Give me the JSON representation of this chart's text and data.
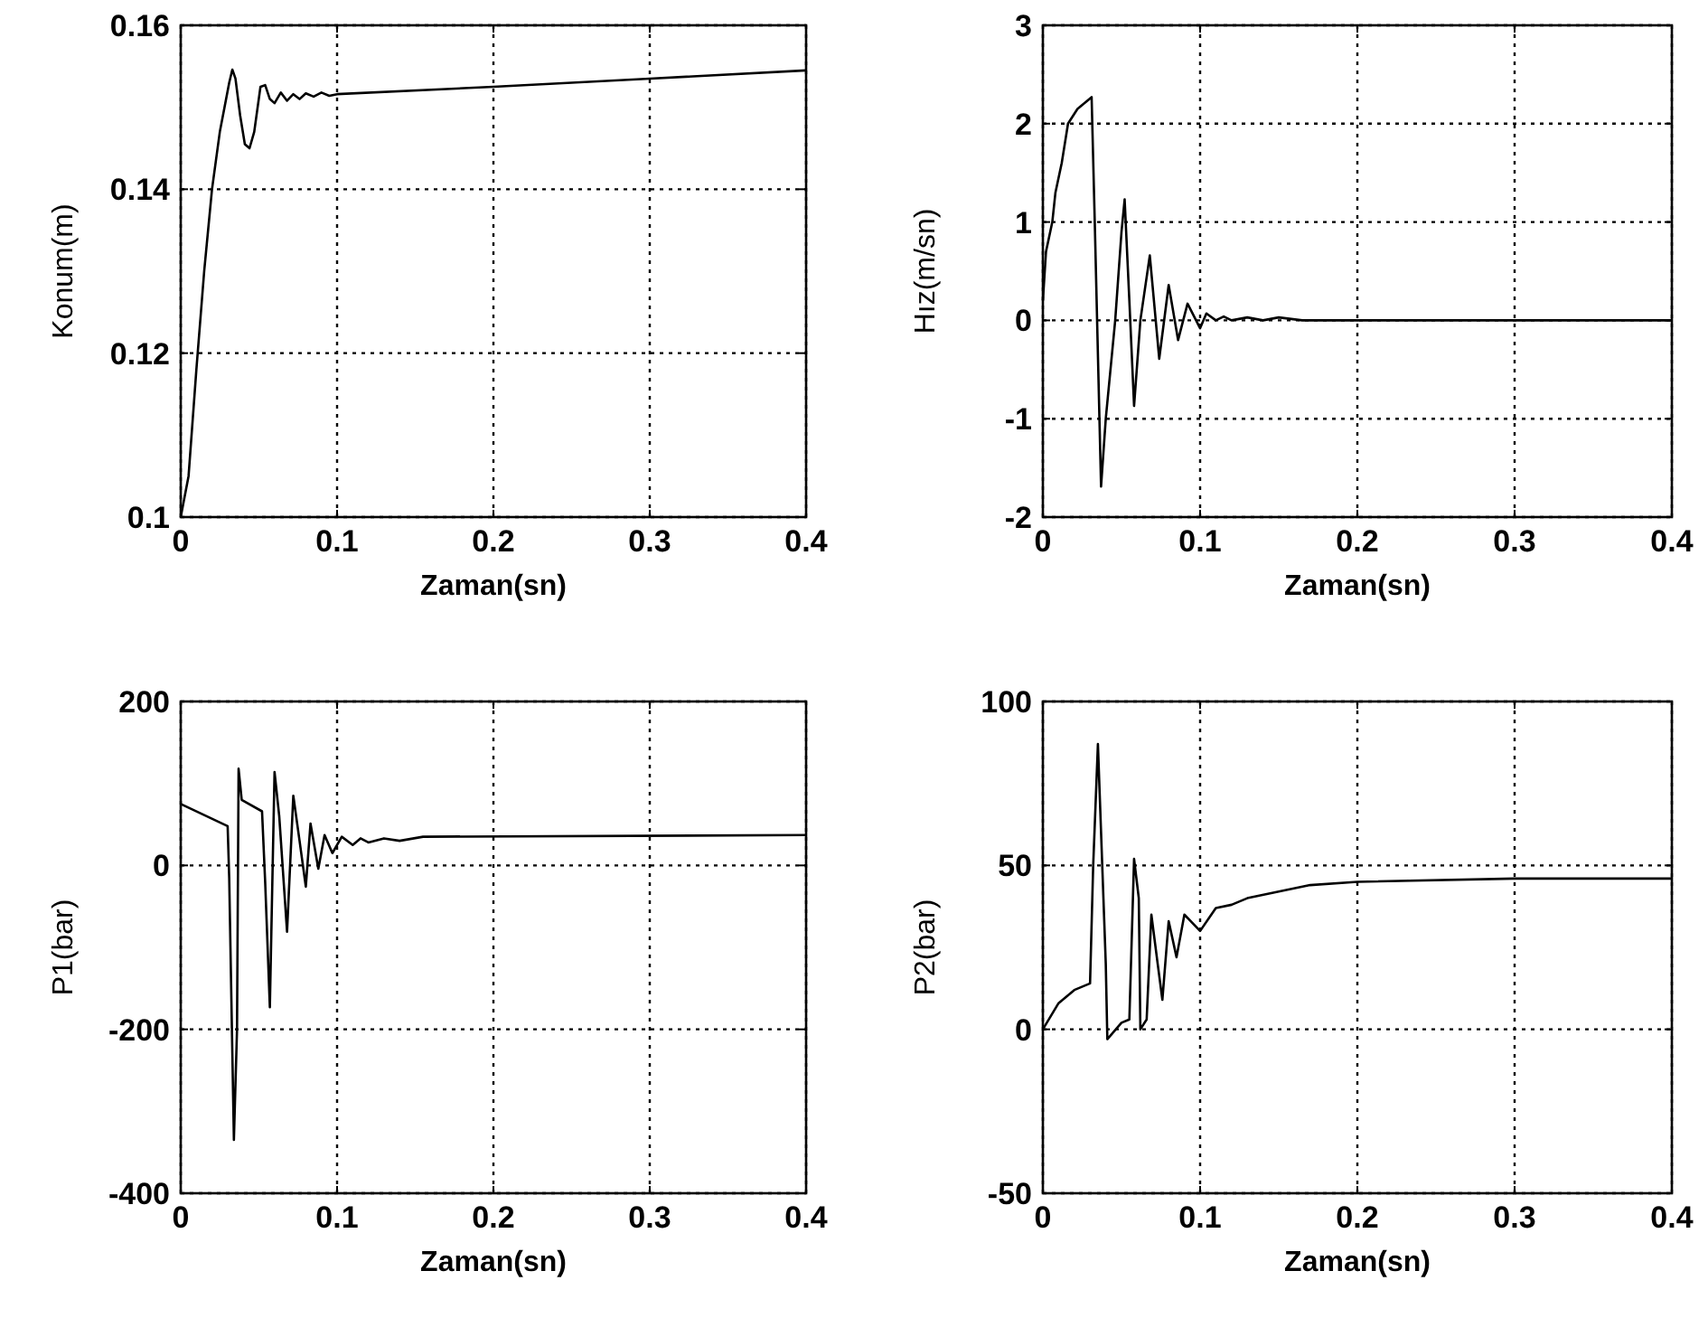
{
  "chart_data": [
    {
      "type": "line",
      "xlabel": "Zaman(sn)",
      "ylabel": "Konum(m)",
      "xlim": [
        0,
        0.4
      ],
      "ylim": [
        0.1,
        0.16
      ],
      "xticks": [
        0,
        0.1,
        0.2,
        0.3,
        0.4
      ],
      "yticks": [
        0.1,
        0.12,
        0.14,
        0.16
      ],
      "grid": true,
      "line_style": "solid",
      "series": [
        {
          "color": "#000000",
          "x": [
            0,
            0.005,
            0.01,
            0.015,
            0.02,
            0.025,
            0.028,
            0.031,
            0.033,
            0.035,
            0.038,
            0.041,
            0.044,
            0.047,
            0.051,
            0.054,
            0.057,
            0.06,
            0.064,
            0.068,
            0.072,
            0.076,
            0.08,
            0.085,
            0.09,
            0.095,
            0.1,
            0.2,
            0.3,
            0.4
          ],
          "values": [
            0.1,
            0.105,
            0.118,
            0.13,
            0.14,
            0.147,
            0.15,
            0.153,
            0.1546,
            0.1535,
            0.149,
            0.1455,
            0.145,
            0.147,
            0.1525,
            0.1527,
            0.151,
            0.1505,
            0.1518,
            0.1508,
            0.1516,
            0.151,
            0.1517,
            0.1513,
            0.1518,
            0.1514,
            0.1516,
            0.1525,
            0.1535,
            0.1545
          ]
        }
      ]
    },
    {
      "type": "line",
      "xlabel": "Zaman(sn)",
      "ylabel": "Hız(m/sn)",
      "xlim": [
        0,
        0.4
      ],
      "ylim": [
        -2,
        3
      ],
      "xticks": [
        0,
        0.1,
        0.2,
        0.3,
        0.4
      ],
      "yticks": [
        -2,
        -1,
        0,
        1,
        2,
        3
      ],
      "grid": true,
      "line_style": "solid",
      "series": [
        {
          "color": "#000000",
          "x": [
            0,
            0.002,
            0.006,
            0.008,
            0.012,
            0.016,
            0.022,
            0.031,
            0.033,
            0.037,
            0.04,
            0.046,
            0.05,
            0.052,
            0.055,
            0.058,
            0.062,
            0.068,
            0.074,
            0.08,
            0.086,
            0.092,
            0.1,
            0.104,
            0.11,
            0.115,
            0.12,
            0.13,
            0.14,
            0.15,
            0.165,
            0.4
          ],
          "values": [
            0.2,
            0.7,
            1.0,
            1.3,
            1.6,
            2.0,
            2.15,
            2.27,
            1.0,
            -1.69,
            -1.0,
            0.0,
            0.9,
            1.23,
            0.2,
            -0.87,
            0.0,
            0.66,
            -0.39,
            0.36,
            -0.2,
            0.17,
            -0.08,
            0.07,
            0.0,
            0.04,
            0.0,
            0.03,
            0.0,
            0.03,
            0.0,
            0.0
          ]
        }
      ]
    },
    {
      "type": "line",
      "xlabel": "Zaman(sn)",
      "ylabel": "P1(bar)",
      "xlim": [
        0,
        0.4
      ],
      "ylim": [
        -400,
        200
      ],
      "xticks": [
        0,
        0.1,
        0.2,
        0.3,
        0.4
      ],
      "yticks": [
        -400,
        -200,
        0,
        200
      ],
      "grid": true,
      "line_style": "solid",
      "series": [
        {
          "color": "#000000",
          "x": [
            0,
            0.03,
            0.031,
            0.034,
            0.036,
            0.037,
            0.039,
            0.052,
            0.054,
            0.057,
            0.06,
            0.063,
            0.068,
            0.072,
            0.076,
            0.08,
            0.083,
            0.088,
            0.092,
            0.097,
            0.103,
            0.11,
            0.115,
            0.12,
            0.13,
            0.14,
            0.155,
            0.4
          ],
          "values": [
            75,
            48,
            -15,
            -335,
            -200,
            118,
            80,
            66,
            -20,
            -173,
            114,
            60,
            -81,
            85,
            30,
            -26,
            51,
            -4,
            37,
            15,
            35,
            25,
            33,
            28,
            33,
            30,
            35,
            37
          ]
        }
      ]
    },
    {
      "type": "line",
      "xlabel": "Zaman(sn)",
      "ylabel": "P2(bar)",
      "xlim": [
        0,
        0.4
      ],
      "ylim": [
        -50,
        100
      ],
      "xticks": [
        0,
        0.1,
        0.2,
        0.3,
        0.4
      ],
      "yticks": [
        -50,
        0,
        50,
        100
      ],
      "grid": true,
      "line_style": "solid",
      "series": [
        {
          "color": "#000000",
          "x": [
            0,
            0.01,
            0.02,
            0.03,
            0.032,
            0.035,
            0.04,
            0.041,
            0.05,
            0.055,
            0.058,
            0.061,
            0.062,
            0.066,
            0.069,
            0.073,
            0.076,
            0.08,
            0.085,
            0.09,
            0.1,
            0.11,
            0.12,
            0.13,
            0.15,
            0.17,
            0.2,
            0.3,
            0.4
          ],
          "values": [
            0,
            8,
            12,
            14,
            50,
            87,
            20,
            -3,
            2,
            3,
            52,
            40,
            0,
            3,
            35,
            20,
            9,
            33,
            22,
            35,
            30,
            37,
            38,
            40,
            42,
            44,
            45,
            46,
            46
          ]
        }
      ]
    }
  ]
}
